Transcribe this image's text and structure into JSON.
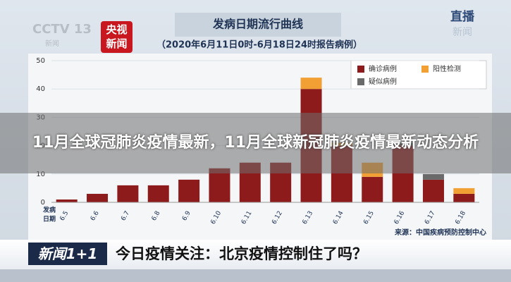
{
  "chart_data": {
    "type": "stacked-bar",
    "title": "发病日期流行曲线",
    "subtitle": "（2020年6月11日0时-6月18日24时报告病例）",
    "source": "来源：中国疾病预防控制中心",
    "x_label_lines": [
      "发病",
      "日期"
    ],
    "categories": [
      "6.5",
      "6.6",
      "6.7",
      "6.8",
      "6.9",
      "6.10",
      "6.11",
      "6.12",
      "6.13",
      "6.14",
      "6.15",
      "6.16",
      "6.17",
      "6.18"
    ],
    "series": [
      {
        "name": "确诊病例",
        "color": "#8e1b1b",
        "values": [
          1,
          3,
          6,
          6,
          8,
          12,
          14,
          14,
          40,
          20,
          9,
          20,
          8,
          3
        ]
      },
      {
        "name": "阳性检测",
        "color": "#f2a033",
        "values": [
          0,
          0,
          0,
          0,
          0,
          0,
          0,
          0,
          4,
          1,
          5,
          0,
          0,
          2
        ]
      },
      {
        "name": "疑似病例",
        "color": "#6a6a6a",
        "values": [
          0,
          0,
          0,
          0,
          0,
          0,
          0,
          0,
          0,
          0,
          0,
          1,
          2,
          0
        ]
      }
    ],
    "ylim": [
      0,
      50
    ],
    "yticks": [
      0,
      10,
      20,
      30,
      40,
      50
    ],
    "grid": true
  },
  "logos": {
    "channel": "CCTV 13",
    "channel_sub": "新闻",
    "app": "央视新闻",
    "live": "直播",
    "live_sub": "新闻",
    "program": "新闻1+1"
  },
  "overlay_title": "11月全球冠肺炎疫情最新，11月全球新冠肺炎疫情最新动态分析",
  "banner_text": "今日疫情关注：北京疫情控制住了吗？"
}
